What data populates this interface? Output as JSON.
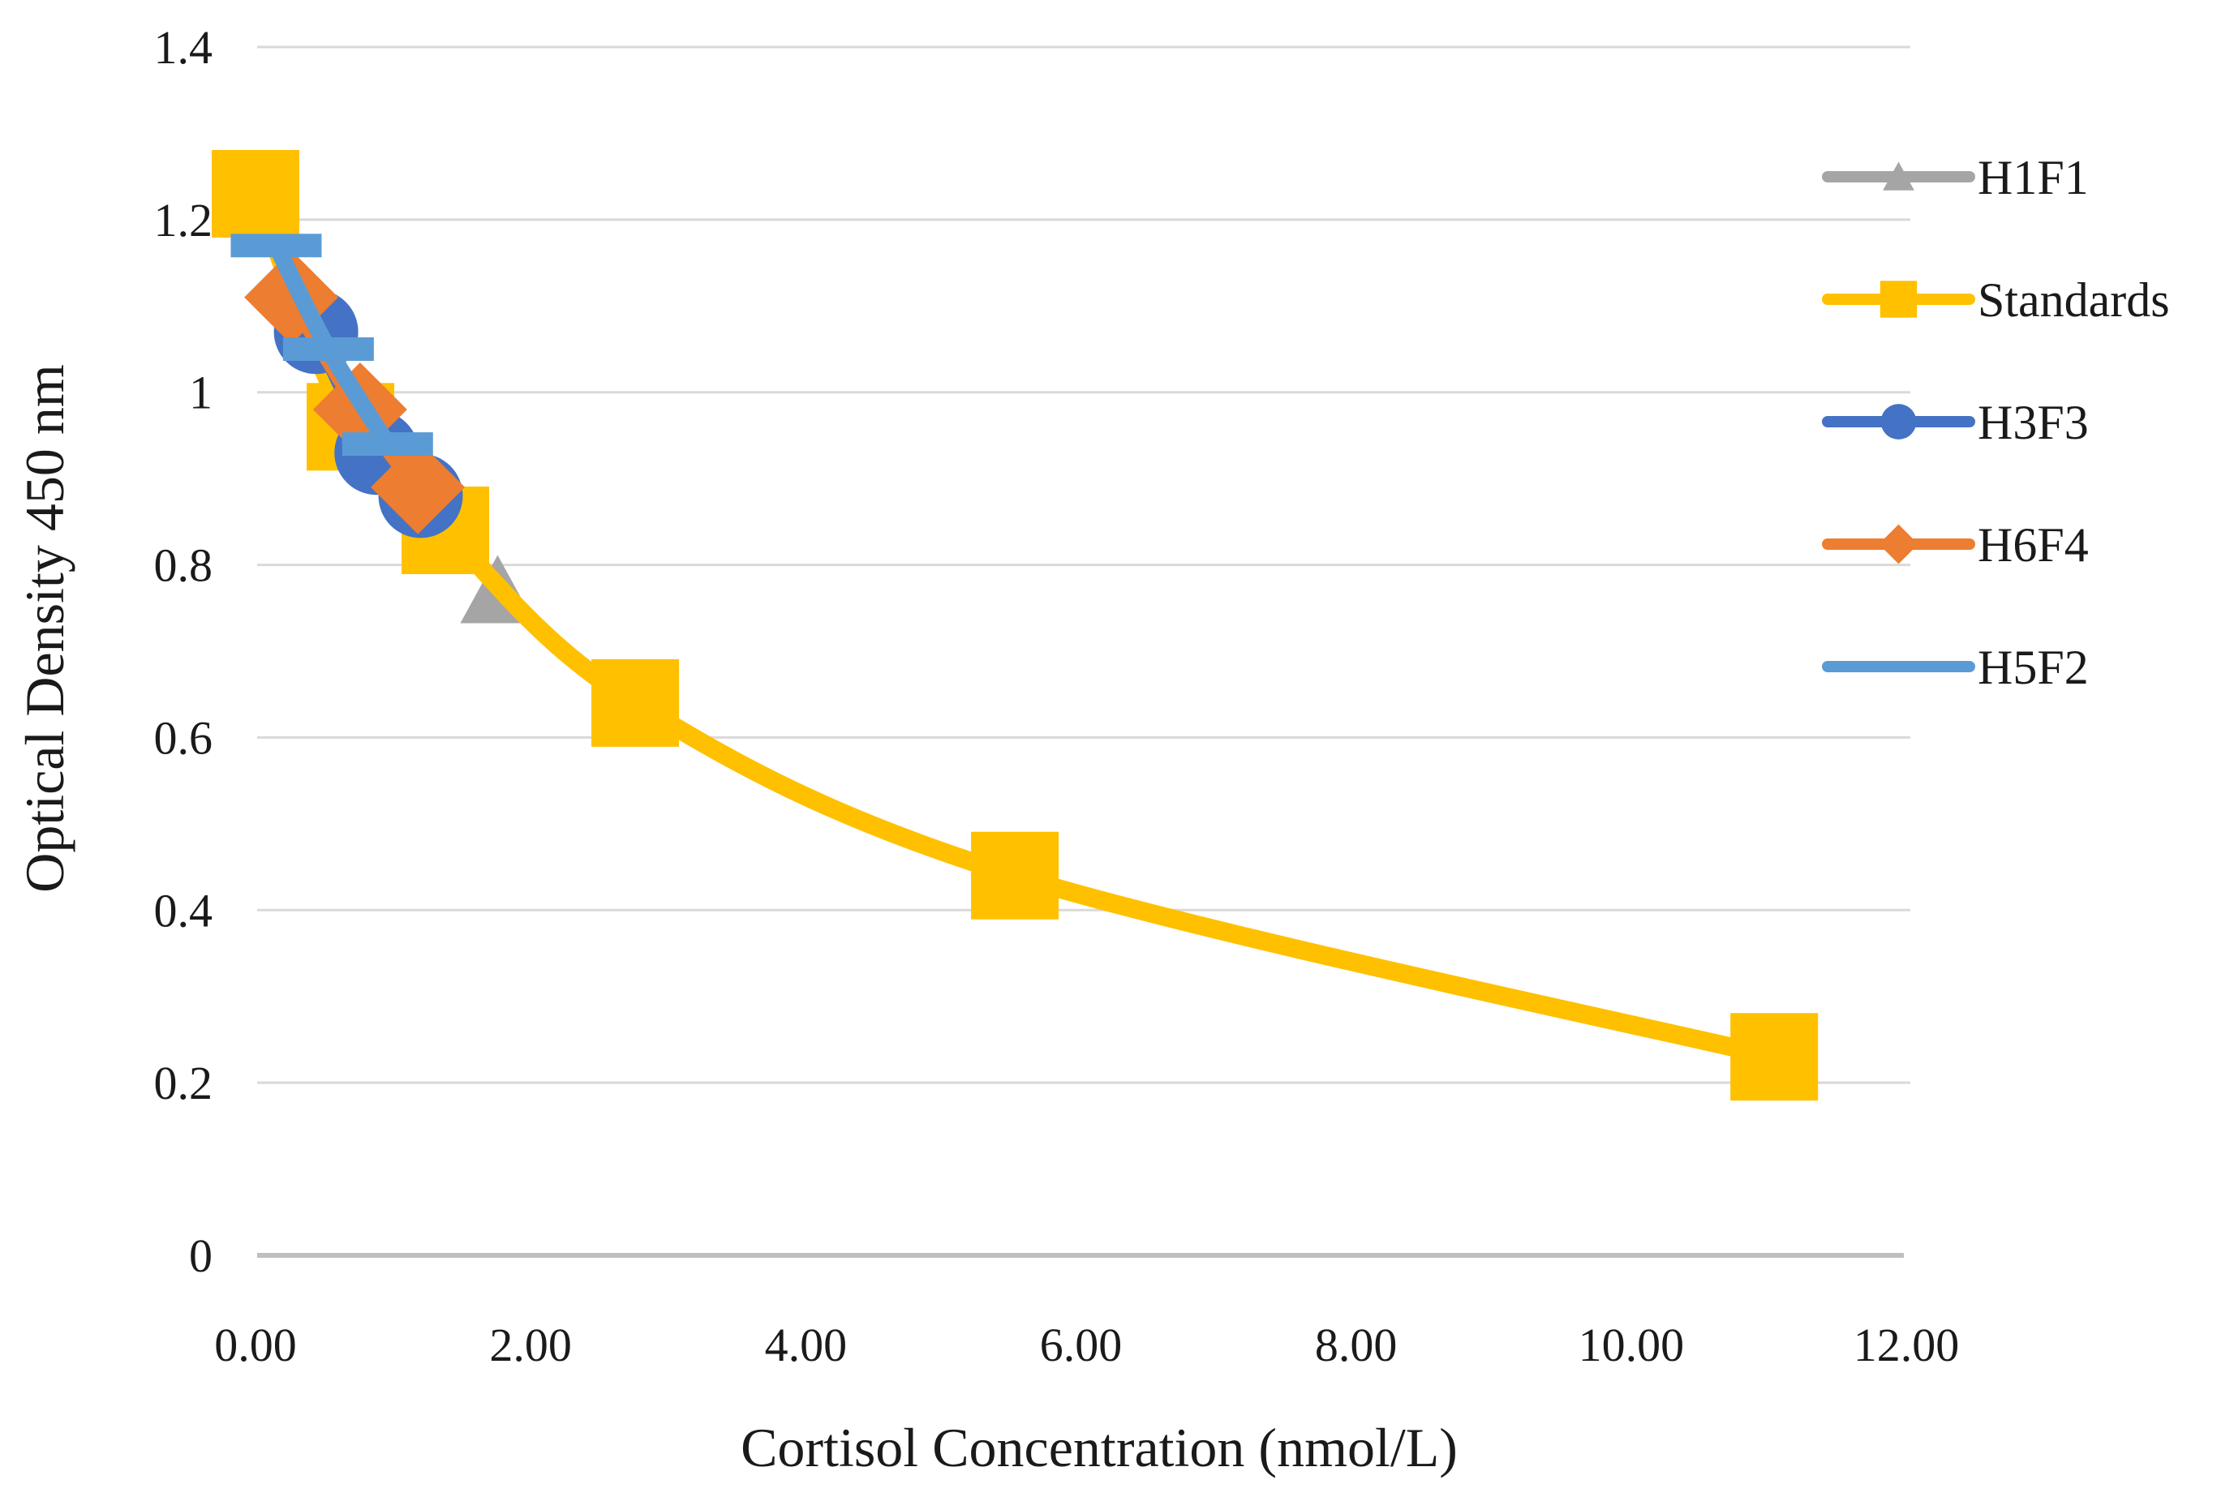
{
  "chart_data": {
    "type": "line",
    "title": "",
    "xlabel": "Cortisol Concentration (nmol/L)",
    "ylabel": "Optical Density 450 nm",
    "xlim": [
      0,
      12
    ],
    "ylim": [
      0,
      1.4
    ],
    "grid": "horizontal-only",
    "legend_position": "right-top",
    "x_ticks": [
      {
        "value": 0,
        "label": "0.00"
      },
      {
        "value": 2,
        "label": "2.00"
      },
      {
        "value": 4,
        "label": "4.00"
      },
      {
        "value": 6,
        "label": "6.00"
      },
      {
        "value": 8,
        "label": "8.00"
      },
      {
        "value": 10,
        "label": "10.00"
      },
      {
        "value": 12,
        "label": "12.00"
      }
    ],
    "y_ticks": [
      {
        "value": 0,
        "label": "0"
      },
      {
        "value": 0.2,
        "label": "0.2"
      },
      {
        "value": 0.4,
        "label": "0.4"
      },
      {
        "value": 0.6,
        "label": "0.6"
      },
      {
        "value": 0.8,
        "label": "0.8"
      },
      {
        "value": 1,
        "label": "1"
      },
      {
        "value": 1.2,
        "label": "1.2"
      },
      {
        "value": 1.4,
        "label": "1.4"
      }
    ],
    "colors": {
      "gridline": "#D9D9D9",
      "axis_line": "#BFBFBF",
      "text": "#1a1a1a"
    },
    "series": [
      {
        "name": "H1F1",
        "color": "#A5A5A5",
        "marker": "triangle",
        "smooth": true,
        "points": [
          [
            1.76,
            0.77
          ]
        ]
      },
      {
        "name": "Standards",
        "color": "#FFC000",
        "marker": "square",
        "smooth": true,
        "points": [
          [
            0.0,
            1.23
          ],
          [
            0.69,
            0.96
          ],
          [
            1.38,
            0.84
          ],
          [
            2.76,
            0.64
          ],
          [
            5.52,
            0.44
          ],
          [
            11.04,
            0.23
          ]
        ]
      },
      {
        "name": "H3F3",
        "color": "#4472C4",
        "marker": "circle",
        "smooth": true,
        "points": [
          [
            0.44,
            1.07
          ],
          [
            0.88,
            0.93
          ],
          [
            1.2,
            0.88
          ]
        ]
      },
      {
        "name": "H6F4",
        "color": "#ED7D31",
        "marker": "diamond",
        "smooth": true,
        "points": [
          [
            0.26,
            1.11
          ],
          [
            0.76,
            0.98
          ],
          [
            1.18,
            0.89
          ]
        ]
      },
      {
        "name": "H5F2",
        "color": "#5B9BD5",
        "marker": "dash",
        "smooth": true,
        "points": [
          [
            0.15,
            1.17
          ],
          [
            0.53,
            1.05
          ],
          [
            0.96,
            0.94
          ]
        ]
      }
    ],
    "legend_order": [
      "H1F1",
      "Standards",
      "H3F3",
      "H6F4",
      "H5F2"
    ]
  }
}
